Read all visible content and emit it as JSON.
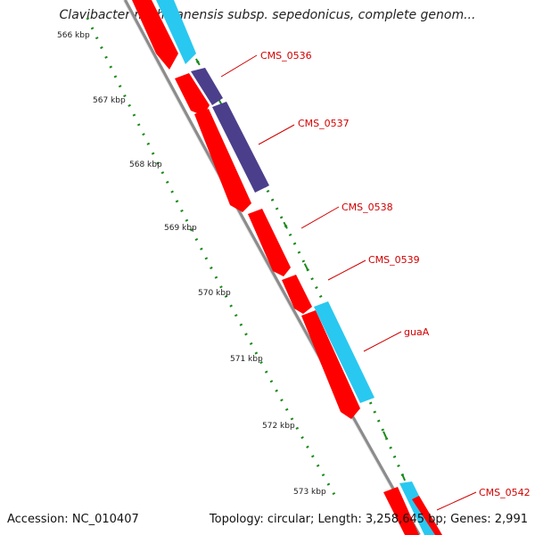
{
  "title": "Clavibacter michiganensis subsp. sepedonicus, complete genom...",
  "footer": {
    "accession": "Accession: NC_010407",
    "summary": "Topology: circular; Length: 3,258,645 bp; Genes: 2,991"
  },
  "scale": {
    "ticks": [
      {
        "label": "566 kbp"
      },
      {
        "label": "567 kbp"
      },
      {
        "label": "568 kbp"
      },
      {
        "label": "569 kbp"
      },
      {
        "label": "570 kbp"
      },
      {
        "label": "571 kbp"
      },
      {
        "label": "572 kbp"
      },
      {
        "label": "573 kbp"
      }
    ]
  },
  "genes": [
    {
      "label": "CMS_0536"
    },
    {
      "label": "CMS_0537"
    },
    {
      "label": "CMS_0538"
    },
    {
      "label": "CMS_0539"
    },
    {
      "label": "guaA"
    },
    {
      "label": "CMS_0542"
    }
  ],
  "colors": {
    "cds_forward": "#ff0000",
    "cds_reverse": "#ff0000",
    "orf": "#29c8f0",
    "orf_dark": "#4b3f8c",
    "backbone": "#8c8c8c",
    "label": "#d10000",
    "tick": "#1a8a1a"
  }
}
